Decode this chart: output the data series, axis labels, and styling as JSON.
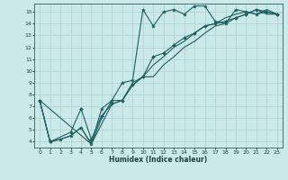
{
  "xlabel": "Humidex (Indice chaleur)",
  "bg_color": "#cce9e9",
  "grid_color": "#b0d5d5",
  "line_color": "#1a6060",
  "xlim": [
    -0.5,
    23.5
  ],
  "ylim": [
    3.5,
    15.7
  ],
  "xticks": [
    0,
    1,
    2,
    3,
    4,
    5,
    6,
    7,
    8,
    9,
    10,
    11,
    12,
    13,
    14,
    15,
    16,
    17,
    18,
    19,
    20,
    21,
    22,
    23
  ],
  "yticks": [
    4,
    5,
    6,
    7,
    8,
    9,
    10,
    11,
    12,
    13,
    14,
    15
  ],
  "line1_x": [
    0,
    1,
    2,
    3,
    4,
    5,
    6,
    7,
    8,
    9,
    10,
    11,
    12,
    13,
    14,
    15,
    16,
    17,
    18,
    19,
    20,
    21,
    22,
    23
  ],
  "line1_y": [
    7.5,
    4.0,
    4.2,
    4.5,
    5.2,
    3.8,
    6.8,
    7.5,
    9.0,
    9.2,
    15.2,
    13.8,
    15.0,
    15.2,
    14.8,
    15.5,
    15.5,
    14.2,
    14.0,
    15.2,
    15.0,
    14.8,
    15.0,
    14.8
  ],
  "line2_x": [
    0,
    1,
    3,
    4,
    5,
    6,
    7,
    8,
    9,
    10,
    11,
    12,
    13,
    14,
    15,
    16,
    17,
    18,
    19,
    20,
    21,
    22,
    23
  ],
  "line2_y": [
    7.5,
    4.0,
    4.8,
    6.8,
    4.2,
    6.2,
    7.2,
    7.5,
    8.8,
    9.5,
    11.2,
    11.5,
    12.2,
    12.8,
    13.2,
    13.8,
    14.0,
    14.2,
    14.5,
    14.8,
    15.2,
    15.0,
    14.8
  ],
  "line3_x": [
    0,
    1,
    2,
    3,
    4,
    5,
    6,
    7,
    8,
    9,
    10,
    11,
    12,
    13,
    14,
    15,
    16,
    17,
    18,
    19,
    20,
    21,
    22,
    23
  ],
  "line3_y": [
    7.5,
    4.0,
    4.2,
    4.5,
    5.2,
    3.8,
    6.0,
    7.5,
    7.5,
    9.0,
    9.5,
    10.5,
    11.2,
    12.0,
    12.5,
    13.2,
    13.8,
    14.0,
    14.5,
    14.8,
    15.0,
    14.8,
    15.2,
    14.8
  ],
  "line4_x": [
    0,
    5,
    6,
    7,
    8,
    9,
    10,
    11,
    12,
    13,
    14,
    15,
    16,
    17,
    18,
    19,
    20,
    21,
    22,
    23
  ],
  "line4_y": [
    7.5,
    3.8,
    5.5,
    7.2,
    7.5,
    8.8,
    9.5,
    9.5,
    10.5,
    11.2,
    12.0,
    12.5,
    13.2,
    13.8,
    14.0,
    14.5,
    14.8,
    15.2,
    14.8,
    14.8
  ]
}
